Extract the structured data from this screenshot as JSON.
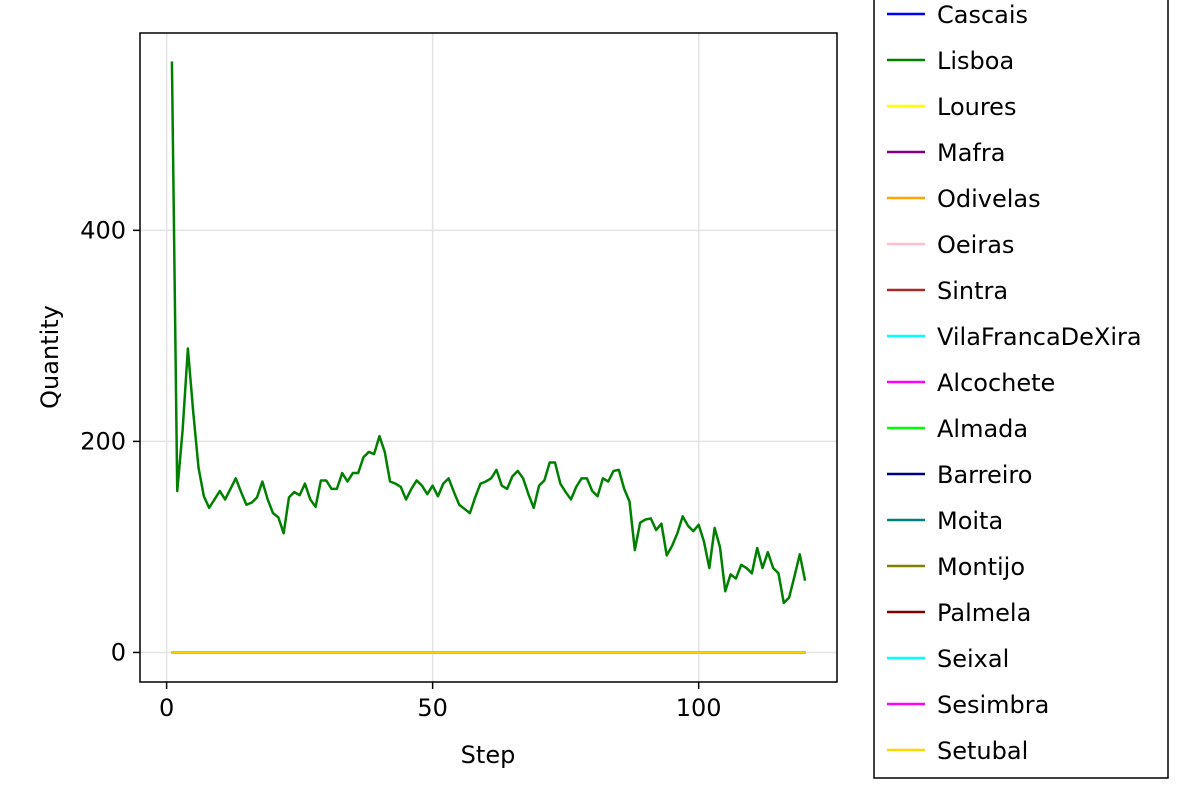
{
  "chart_data": {
    "type": "line",
    "title": "",
    "xlabel": "Step",
    "ylabel": "Quantity",
    "xlim": [
      -5,
      126
    ],
    "ylim": [
      -28,
      587
    ],
    "xticks": [
      0,
      50,
      100
    ],
    "yticks": [
      0,
      200,
      400
    ],
    "grid": true,
    "legend": "outside-right",
    "x": [
      1,
      2,
      3,
      4,
      5,
      6,
      7,
      8,
      9,
      10,
      11,
      12,
      13,
      14,
      15,
      16,
      17,
      18,
      19,
      20,
      21,
      22,
      23,
      24,
      25,
      26,
      27,
      28,
      29,
      30,
      31,
      32,
      33,
      34,
      35,
      36,
      37,
      38,
      39,
      40,
      41,
      42,
      43,
      44,
      45,
      46,
      47,
      48,
      49,
      50,
      51,
      52,
      53,
      54,
      55,
      56,
      57,
      58,
      59,
      60,
      61,
      62,
      63,
      64,
      65,
      66,
      67,
      68,
      69,
      70,
      71,
      72,
      73,
      74,
      75,
      76,
      77,
      78,
      79,
      80,
      81,
      82,
      83,
      84,
      85,
      86,
      87,
      88,
      89,
      90,
      91,
      92,
      93,
      94,
      95,
      96,
      97,
      98,
      99,
      100,
      101,
      102,
      103,
      104,
      105,
      106,
      107,
      108,
      109,
      110,
      111,
      112,
      113,
      114,
      115,
      116,
      117,
      118,
      119,
      120
    ],
    "series": [
      {
        "name": "Cascais",
        "color": "#0000ff",
        "values": "zero"
      },
      {
        "name": "Lisboa",
        "color": "#008000",
        "values": [
          560,
          153,
          210,
          288,
          228,
          175,
          148,
          137,
          145,
          153,
          145,
          155,
          165,
          152,
          140,
          142,
          147,
          162,
          145,
          132,
          128,
          113,
          147,
          152,
          149,
          160,
          145,
          138,
          163,
          163,
          155,
          155,
          170,
          162,
          170,
          170,
          185,
          190,
          188,
          205,
          190,
          162,
          160,
          157,
          145,
          155,
          163,
          158,
          150,
          158,
          148,
          160,
          165,
          152,
          140,
          136,
          132,
          147,
          160,
          162,
          165,
          173,
          158,
          155,
          167,
          172,
          165,
          150,
          137,
          158,
          163,
          180,
          180,
          160,
          152,
          145,
          157,
          165,
          165,
          153,
          148,
          165,
          162,
          172,
          173,
          155,
          143,
          97,
          123,
          126,
          127,
          116,
          122,
          92,
          101,
          113,
          129,
          120,
          115,
          121,
          105,
          80,
          118,
          100,
          58,
          74,
          70,
          83,
          80,
          75,
          99,
          80,
          95,
          80,
          75,
          47,
          52,
          72,
          93,
          68
        ]
      },
      {
        "name": "Loures",
        "color": "#ffff00",
        "values": "zero"
      },
      {
        "name": "Mafra",
        "color": "#800080",
        "values": "zero"
      },
      {
        "name": "Odivelas",
        "color": "#ffa500",
        "values": "zero"
      },
      {
        "name": "Oeiras",
        "color": "#ffc0cb",
        "values": "zero"
      },
      {
        "name": "Sintra",
        "color": "#a52a2a",
        "values": "zero"
      },
      {
        "name": "VilaFrancaDeXira",
        "color": "#00ffff",
        "values": "zero"
      },
      {
        "name": "Alcochete",
        "color": "#ff00ff",
        "values": "zero"
      },
      {
        "name": "Almada",
        "color": "#00ff00",
        "values": "zero"
      },
      {
        "name": "Barreiro",
        "color": "#000080",
        "values": "zero"
      },
      {
        "name": "Moita",
        "color": "#008080",
        "values": "zero"
      },
      {
        "name": "Montijo",
        "color": "#808000",
        "values": "zero"
      },
      {
        "name": "Palmela",
        "color": "#800000",
        "values": "zero"
      },
      {
        "name": "Seixal",
        "color": "#00ffff",
        "values": "zero"
      },
      {
        "name": "Sesimbra",
        "color": "#ff00ff",
        "values": "zero"
      },
      {
        "name": "Setubal",
        "color": "#ffd700",
        "values": "zero"
      }
    ]
  }
}
